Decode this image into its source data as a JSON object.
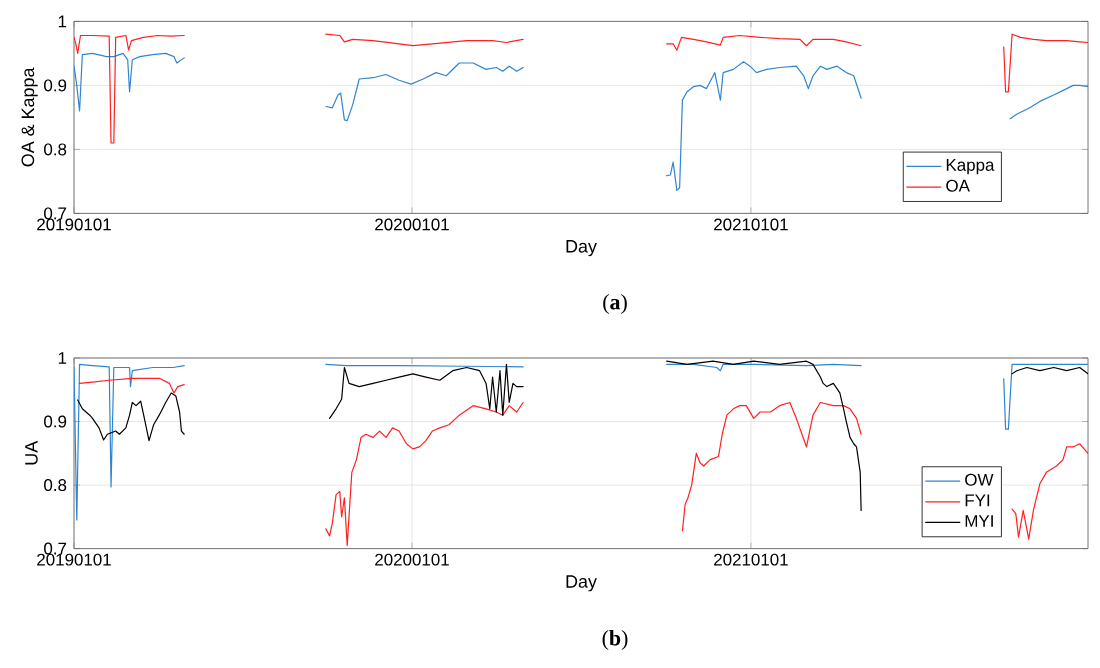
{
  "chart_data": [
    {
      "type": "line",
      "title": "(**a**)",
      "xlabel": "Day",
      "ylabel": "OA & Kappa",
      "xlim": [
        "2019-01-01",
        "2021-12-31"
      ],
      "xticks": [
        {
          "value": "2019-01-01",
          "label": "20190101"
        },
        {
          "value": "2020-01-01",
          "label": "20200101"
        },
        {
          "value": "2021-01-01",
          "label": "20210101"
        }
      ],
      "ylim": [
        0.7,
        1
      ],
      "yticks": [
        0.7,
        0.8,
        0.9,
        1
      ],
      "grid": true,
      "legend": "bottom right",
      "marker": "none",
      "line_style": "solid",
      "series": [
        {
          "name": "Kappa",
          "color": "#2f86d0",
          "x": [
            "2019-01-01",
            "2019-01-04",
            "2019-01-07",
            "2019-01-10",
            "2019-01-21",
            "2019-02-05",
            "2019-02-13",
            "2019-02-23",
            "2019-02-28",
            "2019-03-02",
            "2019-03-05",
            "2019-03-13",
            "2019-03-27",
            "2019-04-10",
            "2019-04-19",
            "2019-04-22",
            "2019-04-30",
            "2019-07-20",
            "2019-09-30",
            "2019-10-07",
            "2019-10-13",
            "2019-10-16",
            "2019-10-20",
            "2019-10-23",
            "2019-10-29",
            "2019-11-05",
            "2019-11-20",
            "2019-12-04",
            "2019-12-18",
            "2019-12-31",
            "2020-01-13",
            "2020-01-27",
            "2020-02-07",
            "2020-02-21",
            "2020-03-07",
            "2020-03-21",
            "2020-04-01",
            "2020-04-08",
            "2020-04-15",
            "2020-04-23",
            "2020-04-30",
            "2020-07-14",
            "2020-10-02",
            "2020-10-06",
            "2020-10-09",
            "2020-10-13",
            "2020-10-16",
            "2020-10-19",
            "2020-10-24",
            "2020-10-31",
            "2020-11-07",
            "2020-11-14",
            "2020-11-23",
            "2020-11-29",
            "2020-12-02",
            "2020-12-13",
            "2020-12-24",
            "2020-12-31",
            "2021-01-07",
            "2021-01-18",
            "2021-02-01",
            "2021-02-19",
            "2021-02-27",
            "2021-03-04",
            "2021-03-09",
            "2021-03-17",
            "2021-03-24",
            "2021-04-04",
            "2021-04-14",
            "2021-04-22",
            "2021-04-30",
            "2021-07-19",
            "2021-10-08",
            "2021-10-15",
            "2021-10-22",
            "2021-10-29",
            "2021-11-09",
            "2021-11-24",
            "2021-12-08",
            "2021-12-15",
            "2021-12-22",
            "2021-12-31"
          ],
          "values": [
            0.93,
            0.9,
            0.86,
            0.948,
            0.95,
            0.945,
            0.945,
            0.95,
            0.94,
            0.89,
            0.94,
            0.945,
            0.948,
            0.95,
            0.945,
            0.935,
            0.943,
            null,
            0.867,
            0.865,
            0.885,
            0.888,
            0.846,
            0.845,
            0.87,
            0.91,
            0.912,
            0.917,
            0.908,
            0.902,
            0.91,
            0.92,
            0.915,
            0.935,
            0.935,
            0.925,
            0.928,
            0.922,
            0.93,
            0.922,
            0.928,
            null,
            0.759,
            0.76,
            0.78,
            0.736,
            0.74,
            0.877,
            0.89,
            0.898,
            0.9,
            0.895,
            0.92,
            0.877,
            0.92,
            0.925,
            0.937,
            0.93,
            0.92,
            0.925,
            0.928,
            0.93,
            0.915,
            0.895,
            0.915,
            0.93,
            0.925,
            0.93,
            0.92,
            0.915,
            0.88,
            null,
            0.848,
            0.855,
            0.86,
            0.865,
            0.875,
            0.885,
            0.895,
            0.9,
            0.9,
            0.898
          ]
        },
        {
          "name": "OA",
          "color": "#ff2020",
          "x": [
            "2019-01-01",
            "2019-01-03",
            "2019-01-05",
            "2019-01-08",
            "2019-01-21",
            "2019-02-08",
            "2019-02-10",
            "2019-02-13",
            "2019-02-15",
            "2019-02-26",
            "2019-03-01",
            "2019-03-04",
            "2019-03-17",
            "2019-04-01",
            "2019-04-16",
            "2019-04-30",
            "2019-07-20",
            "2019-09-30",
            "2019-10-15",
            "2019-10-20",
            "2019-10-29",
            "2019-11-20",
            "2019-12-18",
            "2020-01-02",
            "2020-01-23",
            "2020-02-29",
            "2020-03-28",
            "2020-04-12",
            "2020-04-30",
            "2020-07-14",
            "2020-10-02",
            "2020-10-09",
            "2020-10-13",
            "2020-10-18",
            "2020-10-31",
            "2020-11-14",
            "2020-11-29",
            "2020-12-02",
            "2020-12-20",
            "2021-01-11",
            "2021-02-01",
            "2021-02-23",
            "2021-03-02",
            "2021-03-09",
            "2021-03-31",
            "2021-04-14",
            "2021-04-30",
            "2021-07-19",
            "2021-10-01",
            "2021-10-03",
            "2021-10-06",
            "2021-10-10",
            "2021-10-19",
            "2021-11-02",
            "2021-11-16",
            "2021-12-08",
            "2021-12-22",
            "2021-12-31"
          ],
          "values": [
            0.975,
            0.965,
            0.95,
            0.978,
            0.978,
            0.977,
            0.81,
            0.81,
            0.975,
            0.978,
            0.955,
            0.97,
            0.975,
            0.978,
            0.977,
            0.978,
            null,
            0.98,
            0.978,
            0.968,
            0.972,
            0.97,
            0.965,
            0.962,
            0.965,
            0.97,
            0.97,
            0.967,
            0.972,
            null,
            0.965,
            0.965,
            0.955,
            0.975,
            0.972,
            0.968,
            0.963,
            0.975,
            0.978,
            0.975,
            0.973,
            0.972,
            0.962,
            0.972,
            0.972,
            0.968,
            0.962,
            null,
            0.96,
            0.89,
            0.89,
            0.98,
            0.975,
            0.972,
            0.97,
            0.97,
            0.968,
            0.967
          ]
        }
      ]
    },
    {
      "type": "line",
      "title": "(**b**)",
      "xlabel": "Day",
      "ylabel": "UA",
      "xlim": [
        "2019-01-01",
        "2021-12-31"
      ],
      "xticks": [
        {
          "value": "2019-01-01",
          "label": "20190101"
        },
        {
          "value": "2020-01-01",
          "label": "20200101"
        },
        {
          "value": "2021-01-01",
          "label": "20210101"
        }
      ],
      "ylim": [
        0.7,
        1
      ],
      "yticks": [
        0.7,
        0.8,
        0.9,
        1
      ],
      "grid": true,
      "legend": "bottom right",
      "marker": "none",
      "line_style": "solid",
      "series": [
        {
          "name": "OW",
          "color": "#2f86d0",
          "x": [
            "2019-01-01",
            "2019-01-04",
            "2019-01-07",
            "2019-01-21",
            "2019-02-08",
            "2019-02-10",
            "2019-02-13",
            "2019-03-02",
            "2019-03-03",
            "2019-03-05",
            "2019-03-27",
            "2019-04-18",
            "2019-04-30",
            "2019-07-20",
            "2019-09-30",
            "2019-10-22",
            "2019-12-18",
            "2020-02-29",
            "2020-04-30",
            "2020-07-14",
            "2020-10-02",
            "2020-10-31",
            "2020-11-25",
            "2020-11-29",
            "2020-12-02",
            "2021-01-04",
            "2021-03-02",
            "2021-03-31",
            "2021-04-30",
            "2021-07-19",
            "2021-10-01",
            "2021-10-03",
            "2021-10-06",
            "2021-10-10",
            "2021-10-19",
            "2021-11-16",
            "2021-12-31"
          ],
          "values": [
            0.986,
            0.745,
            0.99,
            0.988,
            0.986,
            0.797,
            0.985,
            0.985,
            0.955,
            0.98,
            0.985,
            0.985,
            0.988,
            null,
            0.99,
            0.988,
            0.988,
            0.987,
            0.986,
            null,
            0.99,
            0.99,
            0.985,
            0.98,
            0.99,
            0.99,
            0.988,
            0.99,
            0.988,
            null,
            0.967,
            0.888,
            0.888,
            0.99,
            0.99,
            0.99,
            0.99
          ]
        },
        {
          "name": "FYI",
          "color": "#ff2020",
          "x": [
            "2019-01-07",
            "2019-01-21",
            "2019-02-08",
            "2019-03-05",
            "2019-04-03",
            "2019-04-14",
            "2019-04-19",
            "2019-04-23",
            "2019-04-30",
            "2019-07-20",
            "2019-09-30",
            "2019-10-04",
            "2019-10-07",
            "2019-10-11",
            "2019-10-15",
            "2019-10-17",
            "2019-10-20",
            "2019-10-23",
            "2019-10-28",
            "2019-11-02",
            "2019-11-07",
            "2019-11-12",
            "2019-11-20",
            "2019-11-27",
            "2019-12-04",
            "2019-12-11",
            "2019-12-18",
            "2019-12-26",
            "2020-01-02",
            "2020-01-09",
            "2020-01-16",
            "2020-01-23",
            "2020-01-31",
            "2020-02-10",
            "2020-02-21",
            "2020-03-07",
            "2020-03-21",
            "2020-04-01",
            "2020-04-08",
            "2020-04-15",
            "2020-04-23",
            "2020-04-30",
            "2020-07-14",
            "2020-10-19",
            "2020-10-22",
            "2020-10-25",
            "2020-10-29",
            "2020-11-03",
            "2020-11-07",
            "2020-11-11",
            "2020-11-18",
            "2020-11-27",
            "2020-12-01",
            "2020-12-06",
            "2020-12-13",
            "2020-12-20",
            "2020-12-27",
            "2021-01-04",
            "2021-01-11",
            "2021-01-22",
            "2021-02-01",
            "2021-02-12",
            "2021-02-19",
            "2021-03-02",
            "2021-03-09",
            "2021-03-17",
            "2021-03-31",
            "2021-04-11",
            "2021-04-18",
            "2021-04-25",
            "2021-04-30",
            "2021-07-19",
            "2021-10-10",
            "2021-10-14",
            "2021-10-17",
            "2021-10-22",
            "2021-10-28",
            "2021-11-02",
            "2021-11-09",
            "2021-11-16",
            "2021-11-27",
            "2021-12-04",
            "2021-12-08",
            "2021-12-15",
            "2021-12-22",
            "2021-12-31"
          ],
          "values": [
            0.96,
            0.962,
            0.965,
            0.968,
            0.968,
            0.96,
            0.945,
            0.955,
            0.958,
            null,
            0.731,
            0.72,
            0.74,
            0.785,
            0.79,
            0.75,
            0.78,
            0.705,
            0.82,
            0.84,
            0.875,
            0.88,
            0.875,
            0.885,
            0.875,
            0.89,
            0.885,
            0.865,
            0.857,
            0.86,
            0.87,
            0.885,
            0.89,
            0.895,
            0.91,
            0.925,
            0.92,
            0.915,
            0.91,
            0.925,
            0.915,
            0.93,
            null,
            0.728,
            0.77,
            0.78,
            0.8,
            0.85,
            0.835,
            0.83,
            0.84,
            0.845,
            0.88,
            0.91,
            0.92,
            0.925,
            0.925,
            0.905,
            0.915,
            0.915,
            0.925,
            0.93,
            0.905,
            0.86,
            0.91,
            0.93,
            0.925,
            0.925,
            0.92,
            0.905,
            0.88,
            null,
            0.762,
            0.755,
            0.718,
            0.76,
            0.715,
            0.76,
            0.802,
            0.82,
            0.83,
            0.84,
            0.86,
            0.86,
            0.865,
            0.85
          ]
        },
        {
          "name": "MYI",
          "color": "#000000",
          "x": [
            "2019-01-05",
            "2019-01-10",
            "2019-01-18",
            "2019-01-21",
            "2019-01-28",
            "2019-02-02",
            "2019-02-06",
            "2019-02-15",
            "2019-02-19",
            "2019-02-26",
            "2019-03-02",
            "2019-03-05",
            "2019-03-09",
            "2019-03-14",
            "2019-03-18",
            "2019-03-23",
            "2019-03-28",
            "2019-04-03",
            "2019-04-10",
            "2019-04-16",
            "2019-04-21",
            "2019-04-25",
            "2019-04-27",
            "2019-04-30",
            "2019-07-20",
            "2019-10-04",
            "2019-10-11",
            "2019-10-17",
            "2019-10-20",
            "2019-10-25",
            "2019-11-05",
            "2019-11-20",
            "2019-12-04",
            "2019-12-18",
            "2020-01-02",
            "2020-01-16",
            "2020-01-31",
            "2020-02-14",
            "2020-02-29",
            "2020-03-14",
            "2020-03-21",
            "2020-03-25",
            "2020-03-28",
            "2020-04-01",
            "2020-04-05",
            "2020-04-08",
            "2020-04-12",
            "2020-04-15",
            "2020-04-19",
            "2020-04-23",
            "2020-04-30",
            "2020-07-14",
            "2020-10-02",
            "2020-10-24",
            "2020-11-21",
            "2020-12-13",
            "2021-01-04",
            "2021-02-01",
            "2021-03-02",
            "2021-03-09",
            "2021-03-17",
            "2021-03-20",
            "2021-03-24",
            "2021-03-31",
            "2021-04-07",
            "2021-04-11",
            "2021-04-14",
            "2021-04-18",
            "2021-04-22",
            "2021-04-25",
            "2021-04-29",
            "2021-04-30",
            "2021-07-19",
            "2021-10-10",
            "2021-10-15",
            "2021-10-26",
            "2021-11-09",
            "2021-11-24",
            "2021-12-08",
            "2021-12-22",
            "2021-12-31"
          ],
          "values": [
            0.934,
            0.92,
            0.91,
            0.905,
            0.89,
            0.871,
            0.88,
            0.885,
            0.88,
            0.89,
            0.91,
            0.93,
            0.925,
            0.932,
            0.905,
            0.87,
            0.895,
            0.91,
            0.93,
            0.945,
            0.94,
            0.915,
            0.885,
            0.88,
            null,
            0.905,
            0.92,
            0.935,
            0.985,
            0.96,
            0.955,
            0.96,
            0.965,
            0.97,
            0.975,
            0.97,
            0.965,
            0.98,
            0.985,
            0.98,
            0.96,
            0.92,
            0.97,
            0.915,
            0.98,
            0.91,
            0.99,
            0.93,
            0.96,
            0.955,
            0.955,
            null,
            0.995,
            0.99,
            0.995,
            0.99,
            0.995,
            0.99,
            0.995,
            0.99,
            0.97,
            0.96,
            0.955,
            0.96,
            0.945,
            0.92,
            0.9,
            0.875,
            0.865,
            0.86,
            0.82,
            0.76,
            null,
            0.975,
            0.98,
            0.985,
            0.98,
            0.985,
            0.98,
            0.985,
            0.975
          ]
        }
      ]
    }
  ]
}
